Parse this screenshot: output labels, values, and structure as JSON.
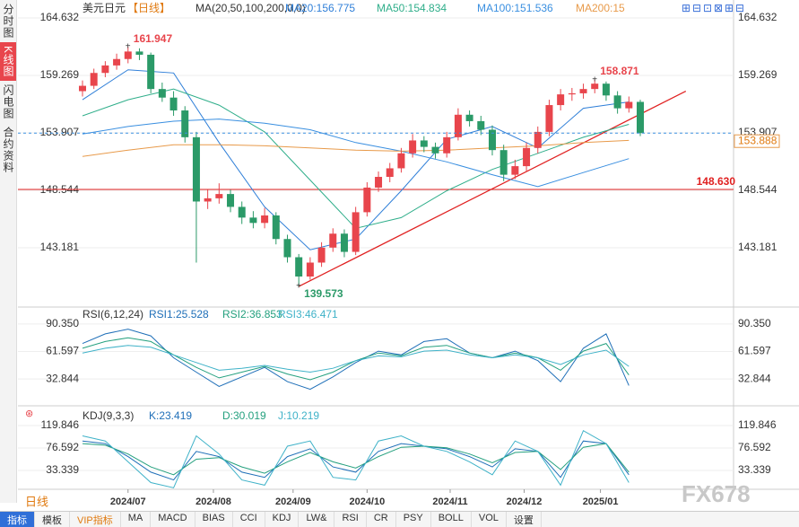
{
  "sidebar": [
    "分时图",
    "K线图",
    "闪电图",
    "合约资料"
  ],
  "toolbar": [
    "指标",
    "模板",
    "VIP指标",
    "MA",
    "MACD",
    "BIAS",
    "CCI",
    "KDJ",
    "LW&",
    "RSI",
    "CR",
    "PSY",
    "BOLL",
    "VOL",
    "设置"
  ],
  "period": "日线",
  "watermark": "FX678",
  "chart_data": {
    "type": "candlestick",
    "title": "美元日元",
    "period_tag": "【日线】",
    "header": [
      "MA(20,50,100,200,0,0)",
      "MA20:156.775",
      "MA50:154.834",
      "MA100:151.536",
      "MA200:15"
    ],
    "up_color": "#e8454c",
    "down_color": "#2b9a68",
    "xlim": [
      0,
      49
    ],
    "xticks": [
      {
        "value": 4,
        "label": "2024/07"
      },
      {
        "value": 11.5,
        "label": "2024/08"
      },
      {
        "value": 18.5,
        "label": "2024/09"
      },
      {
        "value": 25,
        "label": "2024/10"
      },
      {
        "value": 32.3,
        "label": "2024/11"
      },
      {
        "value": 38.8,
        "label": "2024/12"
      },
      {
        "value": 45.5,
        "label": "2025/01"
      }
    ],
    "ylim": [
      137.986,
      165.638
    ],
    "yticks": [
      143.181,
      148.544,
      153.907,
      159.269,
      164.632
    ],
    "candles": [
      [
        157.8,
        158.8,
        157.3,
        158.3
      ],
      [
        158.3,
        159.9,
        158.0,
        159.5
      ],
      [
        159.5,
        160.6,
        159.1,
        160.2
      ],
      [
        160.2,
        161.3,
        159.8,
        160.8
      ],
      [
        160.8,
        161.947,
        160.4,
        161.5
      ],
      [
        161.5,
        161.8,
        160.7,
        161.2
      ],
      [
        161.2,
        161.4,
        157.6,
        158.0
      ],
      [
        158.0,
        158.6,
        156.8,
        157.2
      ],
      [
        157.2,
        157.8,
        155.5,
        156.0
      ],
      [
        156.0,
        156.4,
        153.0,
        153.5
      ],
      [
        153.5,
        154.0,
        141.8,
        147.5
      ],
      [
        147.5,
        148.6,
        146.8,
        147.8
      ],
      [
        147.8,
        149.2,
        147.3,
        148.2
      ],
      [
        148.2,
        148.6,
        146.5,
        147.0
      ],
      [
        147.0,
        147.5,
        145.4,
        146.0
      ],
      [
        146.0,
        146.6,
        145.0,
        145.5
      ],
      [
        145.5,
        146.9,
        145.0,
        146.2
      ],
      [
        146.2,
        146.5,
        143.5,
        144.0
      ],
      [
        144.0,
        144.4,
        141.8,
        142.3
      ],
      [
        142.3,
        142.6,
        139.573,
        140.5
      ],
      [
        140.5,
        142.3,
        140.2,
        141.8
      ],
      [
        141.8,
        143.7,
        141.4,
        143.2
      ],
      [
        143.2,
        145.0,
        142.8,
        144.5
      ],
      [
        144.5,
        144.9,
        142.3,
        142.8
      ],
      [
        142.8,
        147.0,
        142.5,
        146.5
      ],
      [
        146.5,
        149.3,
        146.1,
        148.8
      ],
      [
        148.8,
        150.3,
        148.4,
        149.8
      ],
      [
        149.8,
        151.1,
        149.3,
        150.6
      ],
      [
        150.6,
        152.5,
        150.2,
        152.0
      ],
      [
        152.0,
        153.8,
        151.6,
        153.2
      ],
      [
        153.2,
        153.6,
        152.1,
        152.6
      ],
      [
        152.6,
        153.0,
        151.5,
        152.0
      ],
      [
        152.0,
        154.0,
        151.6,
        153.5
      ],
      [
        153.5,
        156.2,
        153.2,
        155.6
      ],
      [
        155.6,
        156.0,
        154.5,
        155.0
      ],
      [
        155.0,
        155.5,
        153.7,
        154.2
      ],
      [
        154.2,
        154.6,
        151.8,
        152.3
      ],
      [
        152.3,
        152.8,
        149.4,
        150.0
      ],
      [
        150.0,
        151.4,
        149.6,
        150.8
      ],
      [
        150.8,
        153.0,
        150.3,
        152.5
      ],
      [
        152.5,
        154.5,
        152.0,
        154.0
      ],
      [
        154.0,
        157.0,
        153.6,
        156.5
      ],
      [
        156.5,
        158.0,
        156.0,
        157.5
      ],
      [
        157.5,
        158.1,
        156.9,
        157.6
      ],
      [
        157.6,
        158.5,
        157.1,
        158.0
      ],
      [
        158.0,
        158.871,
        157.6,
        158.5
      ],
      [
        158.5,
        158.7,
        156.9,
        157.4
      ],
      [
        157.4,
        157.8,
        155.7,
        156.2
      ],
      [
        156.2,
        157.3,
        155.8,
        156.8
      ],
      [
        156.8,
        157.0,
        153.6,
        153.888
      ]
    ],
    "ma_x": [
      0,
      4,
      8,
      12,
      16,
      20,
      24,
      28,
      32,
      36,
      40,
      44,
      48
    ],
    "ma_series": [
      {
        "name": "MA20",
        "color": "#2f7fd8",
        "values": [
          157.0,
          159.8,
          159.5,
          153.0,
          147.0,
          143.0,
          144.0,
          148.5,
          153.3,
          154.5,
          152.5,
          156.2,
          156.8
        ]
      },
      {
        "name": "MA50",
        "color": "#2fae8a",
        "values": [
          155.5,
          157.0,
          158.0,
          156.5,
          154.0,
          149.5,
          145.0,
          146.0,
          148.5,
          150.5,
          152.0,
          153.5,
          154.7
        ]
      },
      {
        "name": "MA100",
        "color": "#3a8fe0",
        "values": [
          153.8,
          154.5,
          155.0,
          155.2,
          154.8,
          154.2,
          153.0,
          152.2,
          151.2,
          150.0,
          148.9,
          150.2,
          151.5
        ]
      },
      {
        "name": "MA200",
        "color": "#e89a4a",
        "values": [
          151.7,
          152.3,
          152.8,
          152.8,
          152.7,
          152.5,
          152.3,
          152.2,
          152.3,
          152.5,
          152.7,
          153.0,
          153.2
        ]
      }
    ],
    "hline": {
      "value": 148.63,
      "label": "148.630",
      "color": "#e02020"
    },
    "trendline": {
      "from": [
        19,
        139.573
      ],
      "to": [
        53,
        157.8
      ],
      "color": "#e02020"
    },
    "panels": [
      {
        "header": [
          "RSI(6,12,24)",
          "RSI1:25.528",
          "RSI2:36.853",
          "RSI3:46.471"
        ],
        "ylim": [
          11.31,
          105.33
        ],
        "yticks": [
          32.844,
          61.597,
          {
            "value": 90.35,
            "label": "90.350"
          }
        ],
        "x": [
          0,
          2,
          4,
          6,
          8,
          10,
          12,
          14,
          16,
          18,
          20,
          22,
          24,
          26,
          28,
          30,
          32,
          34,
          36,
          38,
          40,
          42,
          44,
          46,
          48
        ],
        "series": [
          {
            "name": "RSI1",
            "color": "#1f6fb8",
            "values": [
              70,
              80,
              85,
              78,
              55,
              40,
              25,
              35,
              45,
              30,
              22,
              35,
              50,
              62,
              58,
              72,
              75,
              60,
              55,
              62,
              52,
              30,
              65,
              80,
              26
            ]
          },
          {
            "name": "RSI2",
            "color": "#24a07e",
            "values": [
              65,
              72,
              76,
              72,
              58,
              45,
              34,
              40,
              46,
              38,
              32,
              40,
              52,
              60,
              57,
              66,
              68,
              60,
              55,
              60,
              55,
              42,
              62,
              70,
              37
            ]
          },
          {
            "name": "RSI3",
            "color": "#3fb2c8",
            "values": [
              60,
              65,
              68,
              66,
              58,
              50,
              42,
              44,
              47,
              43,
              40,
              44,
              52,
              57,
              56,
              62,
              63,
              58,
              55,
              58,
              55,
              48,
              58,
              63,
              46
            ]
          }
        ]
      },
      {
        "header": [
          "KDJ(9,3,3)",
          "K:23.419",
          "D:30.019",
          "J:10.219"
        ],
        "ylim": [
          -3.0,
          147.5
        ],
        "yticks": [
          33.339,
          76.592,
          119.846
        ],
        "x": [
          0,
          2,
          4,
          6,
          8,
          10,
          12,
          14,
          16,
          18,
          20,
          22,
          24,
          26,
          28,
          30,
          32,
          34,
          36,
          38,
          40,
          42,
          44,
          46,
          48
        ],
        "series": [
          {
            "name": "K",
            "color": "#1f6fb8",
            "values": [
              90,
              85,
              60,
              30,
              15,
              70,
              60,
              30,
              20,
              60,
              75,
              40,
              30,
              70,
              85,
              80,
              75,
              60,
              40,
              75,
              70,
              20,
              90,
              85,
              25
            ]
          },
          {
            "name": "D",
            "color": "#24a07e",
            "values": [
              85,
              82,
              65,
              40,
              25,
              55,
              58,
              40,
              28,
              50,
              68,
              50,
              38,
              60,
              78,
              80,
              77,
              65,
              48,
              68,
              70,
              35,
              78,
              85,
              30
            ]
          },
          {
            "name": "J",
            "color": "#3fb2c8",
            "values": [
              100,
              90,
              50,
              10,
              0,
              100,
              65,
              15,
              5,
              80,
              90,
              20,
              15,
              90,
              100,
              80,
              70,
              50,
              25,
              90,
              70,
              5,
              110,
              85,
              10
            ]
          }
        ]
      }
    ]
  }
}
